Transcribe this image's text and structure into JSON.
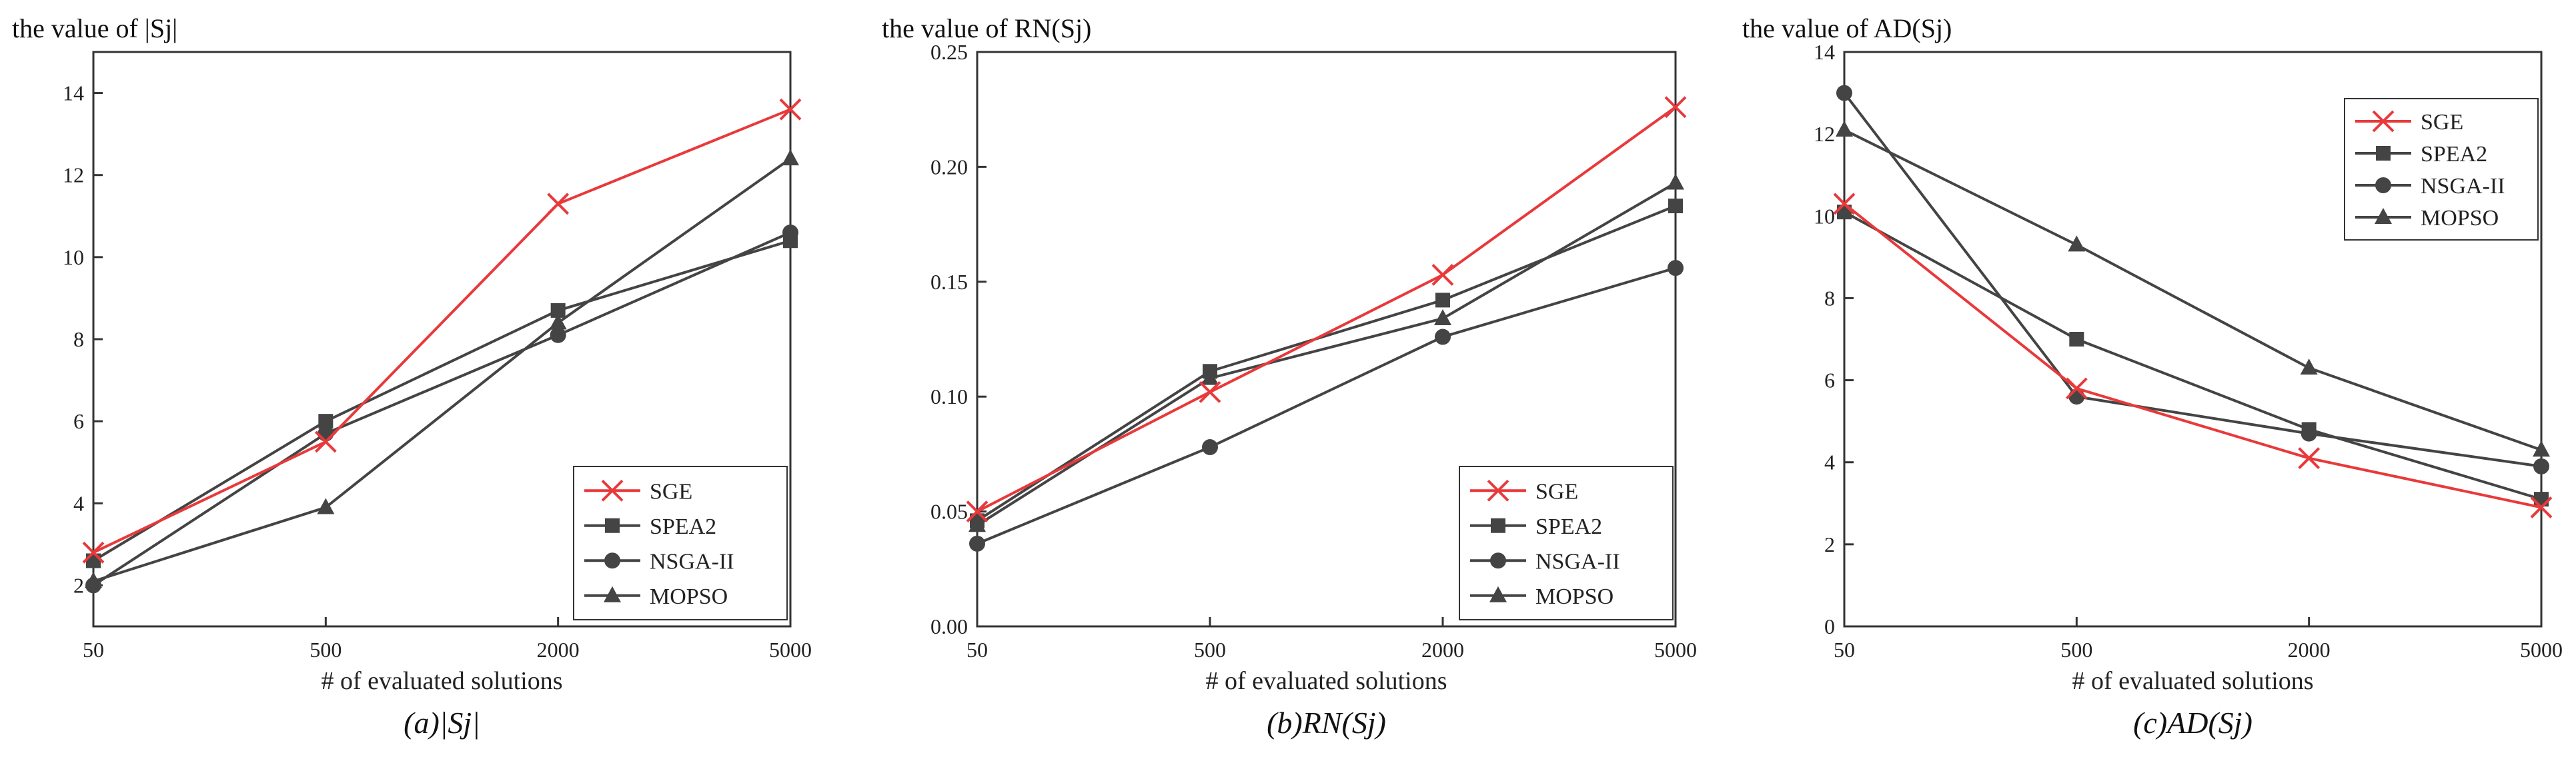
{
  "chart_data": [
    {
      "type": "line",
      "title": "the value of |Sj|",
      "caption": "(a)|Sj|",
      "xlabel": "# of evaluated solutions",
      "ylabel": "",
      "categories": [
        "50",
        "500",
        "2000",
        "5000"
      ],
      "ylim": [
        1,
        15
      ],
      "yticks": [
        2,
        4,
        6,
        8,
        10,
        12,
        14
      ],
      "ytick_labels": [
        "2",
        "4",
        "6",
        "8",
        "10",
        "12",
        "14"
      ],
      "legend_position": "bottom-right",
      "series": [
        {
          "name": "SGE",
          "color": "#e8393b",
          "marker": "x",
          "values": [
            2.8,
            5.5,
            11.3,
            13.6
          ]
        },
        {
          "name": "SPEA2",
          "color": "#444444",
          "marker": "square",
          "values": [
            2.6,
            6.0,
            8.7,
            10.4
          ]
        },
        {
          "name": "NSGA-II",
          "color": "#444444",
          "marker": "circle",
          "values": [
            2.0,
            5.7,
            8.1,
            10.6
          ]
        },
        {
          "name": "MOPSO",
          "color": "#444444",
          "marker": "triangle",
          "values": [
            2.1,
            3.9,
            8.4,
            12.4
          ]
        }
      ]
    },
    {
      "type": "line",
      "title": "the value of RN(Sj)",
      "caption": "(b)RN(Sj)",
      "xlabel": "# of evaluated solutions",
      "ylabel": "",
      "categories": [
        "50",
        "500",
        "2000",
        "5000"
      ],
      "ylim": [
        0.0,
        0.25
      ],
      "yticks": [
        0.0,
        0.05,
        0.1,
        0.15,
        0.2,
        0.25
      ],
      "ytick_labels": [
        "0.00",
        "0.05",
        "0.10",
        "0.15",
        "0.20",
        "0.25"
      ],
      "legend_position": "bottom-right",
      "series": [
        {
          "name": "SGE",
          "color": "#e8393b",
          "marker": "x",
          "values": [
            0.05,
            0.102,
            0.153,
            0.226
          ]
        },
        {
          "name": "SPEA2",
          "color": "#444444",
          "marker": "square",
          "values": [
            0.046,
            0.111,
            0.142,
            0.183
          ]
        },
        {
          "name": "NSGA-II",
          "color": "#444444",
          "marker": "circle",
          "values": [
            0.036,
            0.078,
            0.126,
            0.156
          ]
        },
        {
          "name": "MOPSO",
          "color": "#444444",
          "marker": "triangle",
          "values": [
            0.044,
            0.108,
            0.134,
            0.193
          ]
        }
      ]
    },
    {
      "type": "line",
      "title": "the value of AD(Sj)",
      "caption": "(c)AD(Sj)",
      "xlabel": "# of evaluated solutions",
      "ylabel": "",
      "categories": [
        "50",
        "500",
        "2000",
        "5000"
      ],
      "ylim": [
        0,
        14
      ],
      "yticks": [
        0,
        2,
        4,
        6,
        8,
        10,
        12,
        14
      ],
      "ytick_labels": [
        "0",
        "2",
        "4",
        "6",
        "8",
        "10",
        "12",
        "14"
      ],
      "legend_position": "top-right",
      "series": [
        {
          "name": "SGE",
          "color": "#e8393b",
          "marker": "x",
          "values": [
            10.3,
            5.8,
            4.1,
            2.9
          ]
        },
        {
          "name": "SPEA2",
          "color": "#444444",
          "marker": "square",
          "values": [
            10.1,
            7.0,
            4.8,
            3.1
          ]
        },
        {
          "name": "NSGA-II",
          "color": "#444444",
          "marker": "circle",
          "values": [
            13.0,
            5.6,
            4.7,
            3.9
          ]
        },
        {
          "name": "MOPSO",
          "color": "#444444",
          "marker": "triangle",
          "values": [
            12.1,
            9.3,
            6.3,
            4.3
          ]
        }
      ]
    }
  ]
}
